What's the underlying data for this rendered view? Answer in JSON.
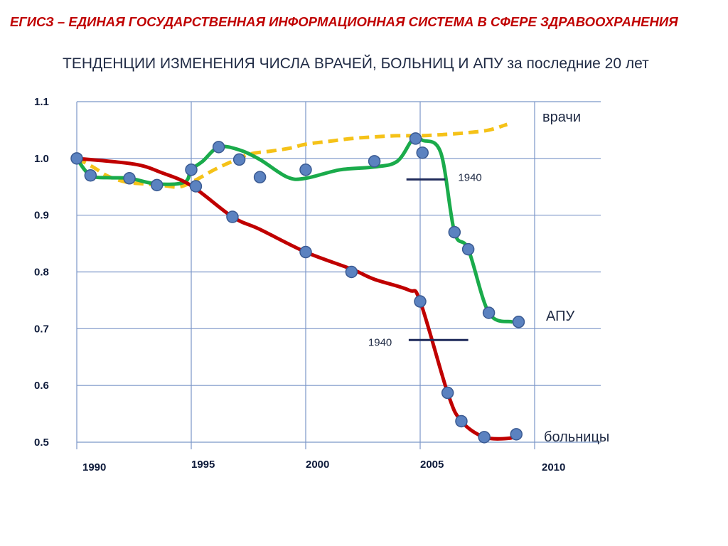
{
  "header": {
    "title": "ЕГИСЗ – ЕДИНАЯ ГОСУДАРСТВЕННАЯ ИНФОРМАЦИОННАЯ СИСТЕМА В СФЕРЕ ЗДРАВООХРАНЕНИЯ"
  },
  "colors": {
    "doctors": "#f5c218",
    "outpatient": "#1aab4b",
    "hospitals": "#c00000",
    "marker": "#5b82c0",
    "grid": "#7b96c8",
    "reference": "#1f2a5a"
  },
  "chart_data": {
    "type": "line",
    "title": "ТЕНДЕНЦИИ ИЗМЕНЕНИЯ ЧИСЛА ВРАЧЕЙ, БОЛЬНИЦ И АПУ за последние 20 лет",
    "xlabel": "",
    "ylabel": "",
    "xlim": [
      1990,
      2010
    ],
    "ylim": [
      0.5,
      1.1
    ],
    "x_ticks": [
      "1990",
      "1995",
      "2000",
      "2005",
      "2010"
    ],
    "y_ticks": [
      "1.1",
      "1.0",
      "0.9",
      "0.8",
      "0.7",
      "0.6",
      "0.5"
    ],
    "grid": true,
    "series": [
      {
        "name": "врачи",
        "style": "dashed",
        "color": "#f5c218",
        "x": [
          1990,
          1990.7,
          1991.4,
          1992.2,
          1993,
          1993.8,
          1994.5,
          1995.2,
          1996,
          1996.8,
          1997.6,
          1998.5,
          1999.3,
          2000,
          2001,
          2002,
          2003,
          2004,
          2005,
          2006,
          2007,
          2008,
          2008.8
        ],
        "y": [
          1.0,
          0.985,
          0.968,
          0.958,
          0.955,
          0.952,
          0.95,
          0.962,
          0.98,
          0.995,
          1.008,
          1.013,
          1.018,
          1.025,
          1.03,
          1.035,
          1.038,
          1.04,
          1.04,
          1.042,
          1.045,
          1.05,
          1.06
        ]
      },
      {
        "name": "АПУ",
        "style": "solid",
        "color": "#1aab4b",
        "x": [
          1990,
          1990.6,
          1991.5,
          1992.3,
          1993.5,
          1994.7,
          1995,
          1995.5,
          1996.2,
          1997.1,
          1998,
          1999.2,
          2000,
          2001.5,
          2003,
          2004,
          2004.7,
          2005.1,
          2005.9,
          2006.5,
          2007.1,
          2008,
          2009
        ],
        "y": [
          1.0,
          0.97,
          0.966,
          0.965,
          0.955,
          0.958,
          0.98,
          0.995,
          1.02,
          1.015,
          0.998,
          0.967,
          0.965,
          0.98,
          0.985,
          0.995,
          1.035,
          1.032,
          1.01,
          0.87,
          0.84,
          0.728,
          0.712
        ]
      },
      {
        "name": "больницы",
        "style": "solid",
        "color": "#c00000",
        "x": [
          1990,
          1992.5,
          1993.7,
          1995,
          1996.8,
          1998,
          2000,
          2002,
          2003,
          2004.5,
          2005,
          2006.2,
          2006.8,
          2007.8,
          2008.9,
          2009.2
        ],
        "y": [
          1.0,
          0.99,
          0.975,
          0.952,
          0.897,
          0.875,
          0.835,
          0.805,
          0.787,
          0.768,
          0.748,
          0.587,
          0.537,
          0.509,
          0.507,
          0.514
        ]
      }
    ],
    "markers": [
      {
        "series": "АПУ",
        "x": [
          1990,
          1990.6,
          1992.3,
          1993.5,
          1995,
          1995.2,
          1996.2,
          1997.1,
          1998,
          2000,
          2003,
          2004.8,
          2005.1,
          2006.5,
          2007.1,
          2008,
          2009.3
        ],
        "y": [
          1.0,
          0.97,
          0.965,
          0.953,
          0.98,
          0.951,
          1.02,
          0.998,
          0.967,
          0.98,
          0.995,
          1.035,
          1.01,
          0.87,
          0.84,
          0.728,
          0.712
        ]
      },
      {
        "series": "больницы",
        "x": [
          1996.8,
          2000,
          2002,
          2005,
          2006.2,
          2006.8,
          2007.8,
          2009.2
        ],
        "y": [
          0.897,
          0.835,
          0.8,
          0.748,
          0.587,
          0.537,
          0.509,
          0.514
        ]
      }
    ],
    "annotations": [
      {
        "label": "1940",
        "x0": 2004.4,
        "x1": 2006.1,
        "y": 0.963,
        "text_side": "right"
      },
      {
        "label": "1940",
        "x0": 2004.5,
        "x1": 2007.1,
        "y": 0.68,
        "text_side": "left"
      }
    ],
    "series_labels": [
      "врачи",
      "АПУ",
      "больницы"
    ]
  }
}
